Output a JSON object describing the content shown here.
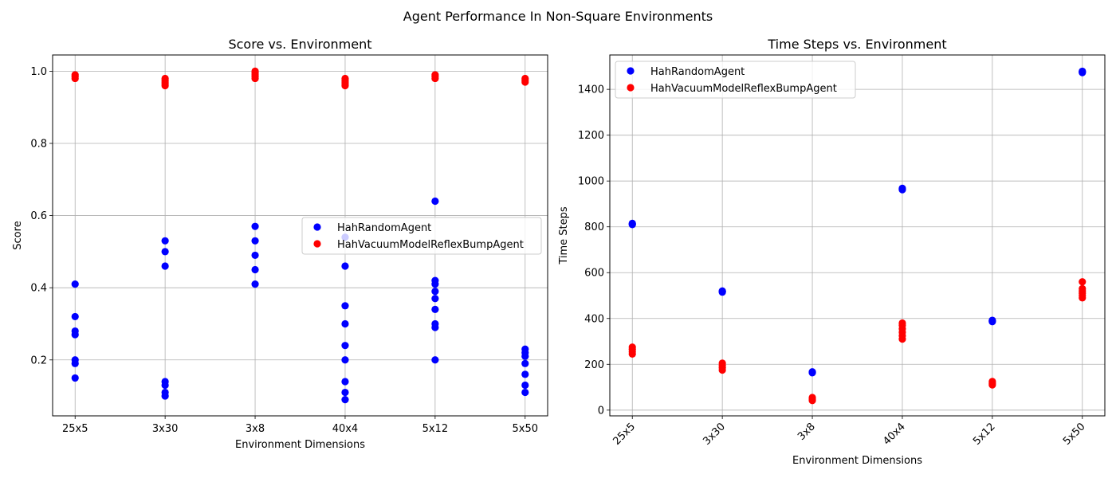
{
  "figure_title": "Agent Performance In Non-Square Environments",
  "chart_data": [
    {
      "type": "scatter",
      "title": "Score vs. Environment",
      "xlabel": "Environment Dimensions",
      "ylabel": "Score",
      "categories": [
        "25x5",
        "3x30",
        "3x8",
        "40x4",
        "5x12",
        "5x50"
      ],
      "ylim": [
        0.045,
        1.045
      ],
      "yticks": [
        "0.2",
        "0.4",
        "0.6",
        "0.8",
        "1.0"
      ],
      "grid": true,
      "legend_position": "center-right",
      "series": [
        {
          "name": "HahRandomAgent",
          "color": "#0000ff",
          "points": [
            [
              "25x5",
              0.15
            ],
            [
              "25x5",
              0.19
            ],
            [
              "25x5",
              0.2
            ],
            [
              "25x5",
              0.27
            ],
            [
              "25x5",
              0.28
            ],
            [
              "25x5",
              0.32
            ],
            [
              "25x5",
              0.41
            ],
            [
              "3x30",
              0.1
            ],
            [
              "3x30",
              0.11
            ],
            [
              "3x30",
              0.13
            ],
            [
              "3x30",
              0.14
            ],
            [
              "3x30",
              0.46
            ],
            [
              "3x30",
              0.5
            ],
            [
              "3x30",
              0.53
            ],
            [
              "3x8",
              0.41
            ],
            [
              "3x8",
              0.45
            ],
            [
              "3x8",
              0.49
            ],
            [
              "3x8",
              0.53
            ],
            [
              "3x8",
              0.57
            ],
            [
              "40x4",
              0.09
            ],
            [
              "40x4",
              0.11
            ],
            [
              "40x4",
              0.14
            ],
            [
              "40x4",
              0.2
            ],
            [
              "40x4",
              0.24
            ],
            [
              "40x4",
              0.3
            ],
            [
              "40x4",
              0.35
            ],
            [
              "40x4",
              0.46
            ],
            [
              "40x4",
              0.54
            ],
            [
              "5x12",
              0.2
            ],
            [
              "5x12",
              0.29
            ],
            [
              "5x12",
              0.3
            ],
            [
              "5x12",
              0.34
            ],
            [
              "5x12",
              0.37
            ],
            [
              "5x12",
              0.39
            ],
            [
              "5x12",
              0.41
            ],
            [
              "5x12",
              0.42
            ],
            [
              "5x12",
              0.64
            ],
            [
              "5x50",
              0.11
            ],
            [
              "5x50",
              0.13
            ],
            [
              "5x50",
              0.16
            ],
            [
              "5x50",
              0.19
            ],
            [
              "5x50",
              0.21
            ],
            [
              "5x50",
              0.22
            ],
            [
              "5x50",
              0.23
            ]
          ]
        },
        {
          "name": "HahVacuumModelReflexBumpAgent",
          "color": "#ff0000",
          "points": [
            [
              "25x5",
              0.98
            ],
            [
              "25x5",
              0.985
            ],
            [
              "25x5",
              0.99
            ],
            [
              "3x30",
              0.96
            ],
            [
              "3x30",
              0.965
            ],
            [
              "3x30",
              0.97
            ],
            [
              "3x30",
              0.975
            ],
            [
              "3x30",
              0.98
            ],
            [
              "3x8",
              0.98
            ],
            [
              "3x8",
              0.985
            ],
            [
              "3x8",
              0.99
            ],
            [
              "3x8",
              0.995
            ],
            [
              "3x8",
              1.0
            ],
            [
              "40x4",
              0.96
            ],
            [
              "40x4",
              0.965
            ],
            [
              "40x4",
              0.97
            ],
            [
              "40x4",
              0.975
            ],
            [
              "40x4",
              0.98
            ],
            [
              "5x12",
              0.98
            ],
            [
              "5x12",
              0.985
            ],
            [
              "5x12",
              0.99
            ],
            [
              "5x50",
              0.97
            ],
            [
              "5x50",
              0.975
            ],
            [
              "5x50",
              0.98
            ]
          ]
        }
      ]
    },
    {
      "type": "scatter",
      "title": "Time Steps vs. Environment",
      "xlabel": "Environment Dimensions",
      "ylabel": "Time Steps",
      "categories": [
        "25x5",
        "3x30",
        "3x8",
        "40x4",
        "5x12",
        "5x50"
      ],
      "ylim": [
        -25,
        1550
      ],
      "yticks": [
        "0",
        "200",
        "400",
        "600",
        "800",
        "1000",
        "1200",
        "1400"
      ],
      "xtick_rotation": "45 degrees",
      "grid": true,
      "legend_position": "top-left",
      "series": [
        {
          "name": "HahRandomAgent",
          "color": "#0000ff",
          "points": [
            [
              "25x5",
              810
            ],
            [
              "25x5",
              812
            ],
            [
              "25x5",
              815
            ],
            [
              "3x30",
              515
            ],
            [
              "3x30",
              518
            ],
            [
              "3x30",
              520
            ],
            [
              "3x8",
              163
            ],
            [
              "3x8",
              165
            ],
            [
              "3x8",
              167
            ],
            [
              "40x4",
              962
            ],
            [
              "40x4",
              965
            ],
            [
              "40x4",
              968
            ],
            [
              "5x12",
              386
            ],
            [
              "5x12",
              389
            ],
            [
              "5x12",
              392
            ],
            [
              "5x50",
              1473
            ],
            [
              "5x50",
              1476
            ],
            [
              "5x50",
              1479
            ]
          ]
        },
        {
          "name": "HahVacuumModelReflexBumpAgent",
          "color": "#ff0000",
          "points": [
            [
              "25x5",
              245
            ],
            [
              "25x5",
              255
            ],
            [
              "25x5",
              265
            ],
            [
              "25x5",
              275
            ],
            [
              "3x30",
              175
            ],
            [
              "3x30",
              185
            ],
            [
              "3x30",
              195
            ],
            [
              "3x30",
              205
            ],
            [
              "3x8",
              42
            ],
            [
              "3x8",
              48
            ],
            [
              "3x8",
              55
            ],
            [
              "40x4",
              310
            ],
            [
              "40x4",
              325
            ],
            [
              "40x4",
              340
            ],
            [
              "40x4",
              355
            ],
            [
              "40x4",
              370
            ],
            [
              "40x4",
              380
            ],
            [
              "5x12",
              110
            ],
            [
              "5x12",
              117
            ],
            [
              "5x12",
              125
            ],
            [
              "5x50",
              490
            ],
            [
              "5x50",
              500
            ],
            [
              "5x50",
              510
            ],
            [
              "5x50",
              520
            ],
            [
              "5x50",
              530
            ],
            [
              "5x50",
              560
            ]
          ]
        }
      ]
    }
  ]
}
